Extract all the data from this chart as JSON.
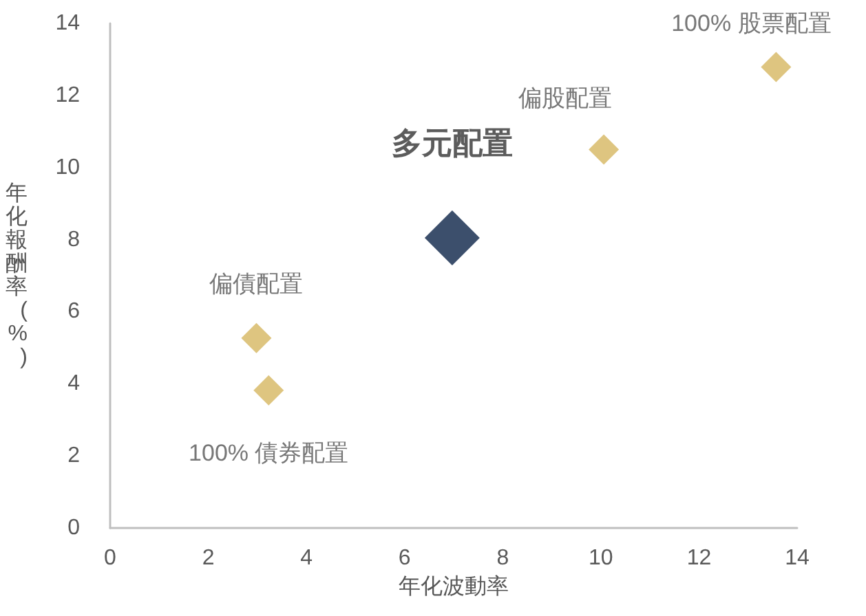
{
  "chart_data": {
    "type": "scatter",
    "xlabel": "年化波動率",
    "ylabel": "年化報酬率(%)",
    "xlim": [
      0,
      14
    ],
    "xticks": [
      0,
      2,
      4,
      6,
      8,
      10,
      12,
      14
    ],
    "ylim": [
      0,
      14
    ],
    "yticks": [
      0,
      2,
      4,
      6,
      8,
      10,
      12,
      14
    ],
    "grid": false,
    "legend": false,
    "marker": "diamond",
    "series": [
      {
        "name": "100% 債券配置",
        "color": "#d6b660",
        "x": [
          3.23
        ],
        "values": [
          3.82
        ]
      },
      {
        "name": "偏債配置",
        "color": "#d6b660",
        "x": [
          2.98
        ],
        "values": [
          5.27
        ]
      },
      {
        "name": "多元配置",
        "color": "#0b2347",
        "x": [
          6.97
        ],
        "values": [
          8.05
        ]
      },
      {
        "name": "偏股配置",
        "color": "#d6b660",
        "x": [
          10.06
        ],
        "values": [
          10.5
        ]
      },
      {
        "name": "100% 股票配置",
        "color": "#d6b660",
        "x": [
          13.57
        ],
        "values": [
          12.79
        ]
      }
    ]
  }
}
